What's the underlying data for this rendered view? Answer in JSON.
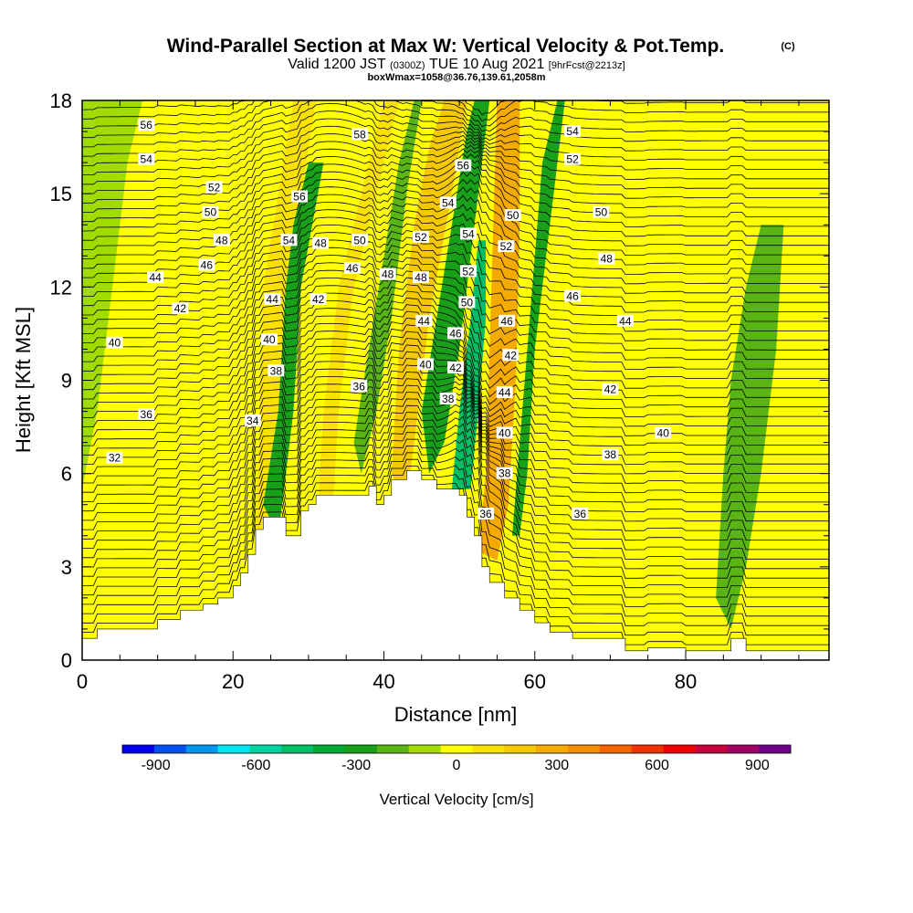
{
  "title": {
    "main": "Wind-Parallel Section at Max W: Vertical Velocity & Pot.Temp.",
    "copyright": "(C)",
    "valid_prefix": "Valid 1200 JST",
    "valid_utc": "(0300Z)",
    "valid_date": "TUE 10 Aug 2021",
    "forecast": "[9hrFcst@2213z]",
    "box_info": "boxWmax=1058@36.76,139.61,2058m"
  },
  "chart_data": {
    "type": "heatmap",
    "xlabel": "Distance [nm]",
    "ylabel": "Height [Kft MSL]",
    "xlim": [
      0,
      99
    ],
    "ylim": [
      0,
      18
    ],
    "x_ticks": [
      0,
      20,
      40,
      60,
      80
    ],
    "y_ticks": [
      0,
      3,
      6,
      9,
      12,
      15,
      18
    ],
    "x_tick_labels": [
      "0",
      "20",
      "40",
      "60",
      "80"
    ],
    "y_tick_labels": [
      "0",
      "3",
      "6",
      "9",
      "12",
      "15",
      "18"
    ],
    "colorbar": {
      "label": "Vertical Velocity [cm/s]",
      "range": [
        -1000,
        1000
      ],
      "levels": [
        -1000,
        -900,
        -800,
        -700,
        -600,
        -500,
        -400,
        -300,
        -200,
        -100,
        0,
        100,
        200,
        300,
        400,
        500,
        600,
        700,
        800,
        900,
        1000
      ],
      "colors": [
        "#0000f0",
        "#0050f0",
        "#0096f0",
        "#00e6f0",
        "#00d2a0",
        "#00be64",
        "#00aa32",
        "#19a019",
        "#5ab414",
        "#a0dc00",
        "#ffff00",
        "#fae100",
        "#f5c800",
        "#f5aa00",
        "#f58c00",
        "#f56400",
        "#f03200",
        "#f00000",
        "#c8003c",
        "#a00064",
        "#6e008c"
      ],
      "tick_values": [
        -900,
        -600,
        -300,
        0,
        300,
        600,
        900
      ],
      "tick_labels": [
        "-900",
        "-600",
        "-300",
        "0",
        "300",
        "600",
        "900"
      ]
    },
    "vertical_velocity_regions": [
      {
        "name": "uplift-ridge-left",
        "sign": "up",
        "level_cm_s": 150,
        "polygon": [
          [
            20,
            0.5
          ],
          [
            23,
            3.5
          ],
          [
            24,
            12
          ],
          [
            26,
            15
          ],
          [
            28,
            18
          ],
          [
            31,
            18
          ],
          [
            29,
            15
          ],
          [
            28,
            9
          ],
          [
            26,
            5
          ],
          [
            23,
            0.5
          ]
        ]
      },
      {
        "name": "uplift-band-mid",
        "sign": "up",
        "level_cm_s": 150,
        "polygon": [
          [
            31,
            4
          ],
          [
            32,
            8
          ],
          [
            34,
            12
          ],
          [
            37,
            15
          ],
          [
            40,
            18
          ],
          [
            42,
            18
          ],
          [
            39,
            15
          ],
          [
            36,
            12
          ],
          [
            34,
            8
          ],
          [
            33,
            4
          ]
        ]
      },
      {
        "name": "uplift-band-center",
        "sign": "up",
        "level_cm_s": 200,
        "polygon": [
          [
            41,
            6
          ],
          [
            42,
            10
          ],
          [
            44,
            14
          ],
          [
            46,
            16.5
          ],
          [
            48,
            18
          ],
          [
            51,
            18
          ],
          [
            49,
            15
          ],
          [
            46,
            11
          ],
          [
            44,
            7
          ],
          [
            43,
            5
          ]
        ]
      },
      {
        "name": "uplift-strong-core",
        "sign": "up",
        "level_cm_s": 650,
        "polygon": [
          [
            53,
            3.8
          ],
          [
            54,
            6
          ],
          [
            54.5,
            9
          ],
          [
            55,
            12
          ],
          [
            55.5,
            13.2
          ],
          [
            57.5,
            13.2
          ],
          [
            57,
            10
          ],
          [
            56,
            6
          ],
          [
            55,
            3.8
          ]
        ]
      },
      {
        "name": "uplift-core-edge",
        "sign": "up",
        "level_cm_s": 300,
        "polygon": [
          [
            52.5,
            3.5
          ],
          [
            53.5,
            6
          ],
          [
            54,
            10
          ],
          [
            54.5,
            14
          ],
          [
            55,
            18
          ],
          [
            58,
            18
          ],
          [
            58,
            14
          ],
          [
            57.5,
            9
          ],
          [
            56.5,
            5
          ],
          [
            55,
            3.2
          ]
        ]
      },
      {
        "name": "downdraft-left-band",
        "sign": "down",
        "level_cm_s": -250,
        "polygon": [
          [
            24,
            5
          ],
          [
            26,
            8
          ],
          [
            27,
            12
          ],
          [
            28,
            14
          ],
          [
            30,
            16
          ],
          [
            32,
            16
          ],
          [
            29,
            12
          ],
          [
            28,
            8
          ],
          [
            26,
            4
          ]
        ]
      },
      {
        "name": "downdraft-mid-band",
        "sign": "down",
        "level_cm_s": -200,
        "polygon": [
          [
            36,
            7
          ],
          [
            38,
            10
          ],
          [
            40,
            13
          ],
          [
            42,
            16
          ],
          [
            44,
            18
          ],
          [
            45,
            18
          ],
          [
            43,
            15
          ],
          [
            41,
            11
          ],
          [
            39,
            8
          ],
          [
            37,
            6
          ]
        ]
      },
      {
        "name": "downdraft-center-band",
        "sign": "down",
        "level_cm_s": -300,
        "polygon": [
          [
            45,
            8
          ],
          [
            47,
            11
          ],
          [
            49,
            14
          ],
          [
            51,
            17
          ],
          [
            52,
            18
          ],
          [
            54,
            18
          ],
          [
            52,
            14
          ],
          [
            50,
            10
          ],
          [
            48,
            7
          ],
          [
            46,
            6
          ]
        ]
      },
      {
        "name": "downdraft-strong-core",
        "sign": "down",
        "level_cm_s": -700,
        "polygon": [
          [
            50,
            6
          ],
          [
            51,
            7.5
          ],
          [
            52,
            9
          ],
          [
            53,
            11
          ],
          [
            52.5,
            12
          ],
          [
            51.5,
            10
          ],
          [
            50.5,
            8
          ],
          [
            49.5,
            7
          ]
        ]
      },
      {
        "name": "downdraft-core-edge",
        "sign": "down",
        "level_cm_s": -450,
        "polygon": [
          [
            49,
            5.5
          ],
          [
            50,
            8
          ],
          [
            51.5,
            11
          ],
          [
            52.5,
            13.5
          ],
          [
            53.5,
            13.5
          ],
          [
            53.5,
            11
          ],
          [
            52.5,
            8
          ],
          [
            51.5,
            5.5
          ]
        ]
      },
      {
        "name": "downdraft-right-band",
        "sign": "down",
        "level_cm_s": -250,
        "polygon": [
          [
            57,
            4
          ],
          [
            58,
            7
          ],
          [
            59,
            10
          ],
          [
            60,
            13
          ],
          [
            61,
            16
          ],
          [
            63,
            18
          ],
          [
            64,
            18
          ],
          [
            62,
            14
          ],
          [
            60,
            10
          ],
          [
            59,
            6
          ],
          [
            58,
            4
          ]
        ]
      },
      {
        "name": "downdraft-far-right",
        "sign": "down",
        "level_cm_s": -120,
        "polygon": [
          [
            84,
            2
          ],
          [
            85,
            6
          ],
          [
            86,
            9
          ],
          [
            88,
            12
          ],
          [
            90,
            14
          ],
          [
            93,
            14
          ],
          [
            92,
            10
          ],
          [
            90,
            6
          ],
          [
            88,
            3
          ],
          [
            86,
            1
          ]
        ]
      },
      {
        "name": "downdraft-left-edge",
        "sign": "down",
        "level_cm_s": -100,
        "polygon": [
          [
            0,
            5.5
          ],
          [
            2,
            8
          ],
          [
            4,
            12
          ],
          [
            6,
            16
          ],
          [
            8,
            18
          ],
          [
            0,
            18
          ]
        ]
      }
    ],
    "terrain_profile": [
      [
        0,
        0.7
      ],
      [
        2,
        0.7
      ],
      [
        2,
        1.0
      ],
      [
        7,
        1.0
      ],
      [
        7,
        1.0
      ],
      [
        10,
        1.0
      ],
      [
        10,
        1.3
      ],
      [
        13,
        1.3
      ],
      [
        13,
        1.6
      ],
      [
        16,
        1.6
      ],
      [
        16,
        1.8
      ],
      [
        18,
        1.8
      ],
      [
        18,
        2.0
      ],
      [
        20,
        2.0
      ],
      [
        20,
        2.4
      ],
      [
        21,
        2.4
      ],
      [
        21,
        2.8
      ],
      [
        22,
        2.8
      ],
      [
        22,
        3.4
      ],
      [
        23,
        3.4
      ],
      [
        23,
        4.2
      ],
      [
        24,
        4.2
      ],
      [
        24,
        4.6
      ],
      [
        27,
        4.6
      ],
      [
        27,
        4.0
      ],
      [
        29,
        4.0
      ],
      [
        29,
        4.8
      ],
      [
        30,
        4.8
      ],
      [
        30,
        5.0
      ],
      [
        31,
        5.0
      ],
      [
        31,
        5.3
      ],
      [
        38,
        5.3
      ],
      [
        38,
        5.6
      ],
      [
        39,
        5.6
      ],
      [
        39,
        5.0
      ],
      [
        40,
        5.0
      ],
      [
        40,
        5.3
      ],
      [
        41,
        5.3
      ],
      [
        41,
        5.8
      ],
      [
        43,
        5.8
      ],
      [
        43,
        6.1
      ],
      [
        45,
        6.1
      ],
      [
        45,
        5.8
      ],
      [
        47,
        5.8
      ],
      [
        47,
        5.5
      ],
      [
        50,
        5.5
      ],
      [
        50,
        5.3
      ],
      [
        51,
        5.3
      ],
      [
        51,
        4.6
      ],
      [
        52,
        4.6
      ],
      [
        52,
        4.0
      ],
      [
        53,
        4.0
      ],
      [
        53,
        3.0
      ],
      [
        54,
        3.0
      ],
      [
        54,
        2.5
      ],
      [
        56,
        2.5
      ],
      [
        56,
        2.0
      ],
      [
        58,
        2.0
      ],
      [
        58,
        1.6
      ],
      [
        60,
        1.6
      ],
      [
        60,
        1.2
      ],
      [
        62,
        1.2
      ],
      [
        62,
        0.9
      ],
      [
        65,
        0.9
      ],
      [
        65,
        0.7
      ],
      [
        72,
        0.7
      ],
      [
        72,
        0.3
      ],
      [
        75,
        0.3
      ],
      [
        75,
        0.4
      ],
      [
        80,
        0.4
      ],
      [
        80,
        0.3
      ],
      [
        86,
        0.3
      ],
      [
        86,
        0.7
      ],
      [
        88,
        0.7
      ],
      [
        88,
        0.3
      ],
      [
        99,
        0.3
      ]
    ],
    "theta_contour_labels": [
      {
        "label": "56",
        "x": 8.5,
        "y": 17.2
      },
      {
        "label": "54",
        "x": 8.5,
        "y": 16.1
      },
      {
        "label": "52",
        "x": 17.5,
        "y": 15.2
      },
      {
        "label": "50",
        "x": 17,
        "y": 14.4
      },
      {
        "label": "48",
        "x": 18.5,
        "y": 13.5
      },
      {
        "label": "46",
        "x": 16.5,
        "y": 12.7
      },
      {
        "label": "44",
        "x": 9.7,
        "y": 12.3
      },
      {
        "label": "42",
        "x": 13,
        "y": 11.3
      },
      {
        "label": "40",
        "x": 4.3,
        "y": 10.2
      },
      {
        "label": "36",
        "x": 8.5,
        "y": 7.9
      },
      {
        "label": "32",
        "x": 4.3,
        "y": 6.5
      },
      {
        "label": "34",
        "x": 22.6,
        "y": 7.7
      },
      {
        "label": "56",
        "x": 28.8,
        "y": 14.9
      },
      {
        "label": "54",
        "x": 27.4,
        "y": 13.5
      },
      {
        "label": "48",
        "x": 31.6,
        "y": 13.4
      },
      {
        "label": "42",
        "x": 31.3,
        "y": 11.6
      },
      {
        "label": "44",
        "x": 25.2,
        "y": 11.6
      },
      {
        "label": "40",
        "x": 24.8,
        "y": 10.3
      },
      {
        "label": "38",
        "x": 25.7,
        "y": 9.3
      },
      {
        "label": "36",
        "x": 36.7,
        "y": 8.8
      },
      {
        "label": "58",
        "x": 36.8,
        "y": 16.9
      },
      {
        "label": "50",
        "x": 36.8,
        "y": 13.5
      },
      {
        "label": "46",
        "x": 35.8,
        "y": 12.6
      },
      {
        "label": "48",
        "x": 40.5,
        "y": 12.4
      },
      {
        "label": "52",
        "x": 44.9,
        "y": 13.6
      },
      {
        "label": "48",
        "x": 44.9,
        "y": 12.3
      },
      {
        "label": "44",
        "x": 45.3,
        "y": 10.9
      },
      {
        "label": "40",
        "x": 45.5,
        "y": 9.5
      },
      {
        "label": "38",
        "x": 48.5,
        "y": 8.4
      },
      {
        "label": "56",
        "x": 50.5,
        "y": 15.9
      },
      {
        "label": "54",
        "x": 48.5,
        "y": 14.7
      },
      {
        "label": "54",
        "x": 51.2,
        "y": 13.7
      },
      {
        "label": "52",
        "x": 51.2,
        "y": 12.5
      },
      {
        "label": "50",
        "x": 51,
        "y": 11.5
      },
      {
        "label": "46",
        "x": 49.5,
        "y": 10.5
      },
      {
        "label": "42",
        "x": 49.5,
        "y": 9.4
      },
      {
        "label": "36",
        "x": 53.5,
        "y": 4.7
      },
      {
        "label": "50",
        "x": 57.1,
        "y": 14.3
      },
      {
        "label": "52",
        "x": 56.2,
        "y": 13.3
      },
      {
        "label": "46",
        "x": 56.3,
        "y": 10.9
      },
      {
        "label": "42",
        "x": 56.8,
        "y": 9.8
      },
      {
        "label": "44",
        "x": 56,
        "y": 8.6
      },
      {
        "label": "40",
        "x": 56,
        "y": 7.3
      },
      {
        "label": "38",
        "x": 56,
        "y": 6
      },
      {
        "label": "54",
        "x": 65,
        "y": 17
      },
      {
        "label": "52",
        "x": 65,
        "y": 16.1
      },
      {
        "label": "50",
        "x": 68.8,
        "y": 14.4
      },
      {
        "label": "48",
        "x": 69.5,
        "y": 12.9
      },
      {
        "label": "46",
        "x": 65,
        "y": 11.7
      },
      {
        "label": "44",
        "x": 72,
        "y": 10.9
      },
      {
        "label": "42",
        "x": 70,
        "y": 8.7
      },
      {
        "label": "40",
        "x": 77,
        "y": 7.3
      },
      {
        "label": "38",
        "x": 70,
        "y": 6.6
      },
      {
        "label": "36",
        "x": 66,
        "y": 4.7
      }
    ]
  }
}
